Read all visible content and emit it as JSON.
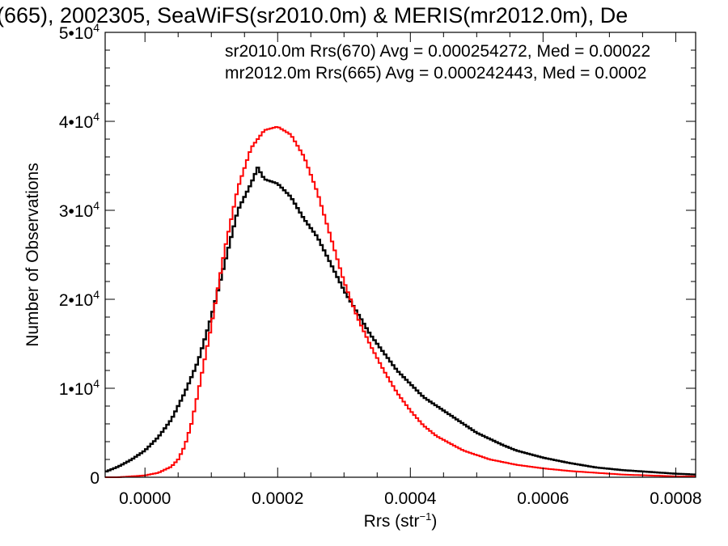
{
  "chart_data": {
    "type": "histogram",
    "title": "(665), 2002305, SeaWiFS(sr2010.0m) & MERIS(mr2012.0m), De",
    "xlabel_main": "Rrs (str",
    "xlabel_sup": "−1",
    "xlabel_end": ")",
    "ylabel": "Number of Observations",
    "xlim": [
      -6e-05,
      0.00083
    ],
    "ylim": [
      0,
      50000
    ],
    "x_ticks": [
      {
        "value": 0.0,
        "label": "0.0000"
      },
      {
        "value": 0.0002,
        "label": "0.0002"
      },
      {
        "value": 0.0004,
        "label": "0.0004"
      },
      {
        "value": 0.0006,
        "label": "0.0006"
      },
      {
        "value": 0.0008,
        "label": "0.0008"
      }
    ],
    "y_ticks": [
      {
        "value": 0,
        "mant": "0",
        "exp": ""
      },
      {
        "value": 10000,
        "mant": "1•10",
        "exp": "4"
      },
      {
        "value": 20000,
        "mant": "2•10",
        "exp": "4"
      },
      {
        "value": 30000,
        "mant": "3•10",
        "exp": "4"
      },
      {
        "value": 40000,
        "mant": "4•10",
        "exp": "4"
      },
      {
        "value": 50000,
        "mant": "5•10",
        "exp": "4"
      }
    ],
    "series": [
      {
        "name": "sr2010.0m Rrs(670)",
        "legend": "sr2010.0m Rrs(670) Avg = 0.000254272, Med = 0.00022",
        "color": "#000000",
        "x": [
          -6e-05,
          -4e-05,
          -2e-05,
          0.0,
          2e-05,
          4e-05,
          6e-05,
          8e-05,
          0.0001,
          0.00012,
          0.00014,
          0.00016,
          0.00017,
          0.00018,
          0.0002,
          0.00022,
          0.00024,
          0.00026,
          0.00028,
          0.0003,
          0.00032,
          0.00034,
          0.00036,
          0.00038,
          0.0004,
          0.00042,
          0.00044,
          0.00046,
          0.00048,
          0.0005,
          0.00052,
          0.00054,
          0.00056,
          0.0006,
          0.00064,
          0.00068,
          0.00072,
          0.00076,
          0.0008,
          0.00083
        ],
        "y": [
          600,
          1200,
          2000,
          3000,
          4500,
          6500,
          9500,
          13000,
          18000,
          24000,
          30000,
          33000,
          34800,
          33500,
          33000,
          31500,
          29000,
          27000,
          24000,
          21000,
          18500,
          16000,
          14000,
          12000,
          10500,
          9000,
          8000,
          7000,
          6000,
          5000,
          4300,
          3600,
          3000,
          2200,
          1600,
          1100,
          800,
          600,
          400,
          300
        ]
      },
      {
        "name": "mr2012.0m Rrs(665)",
        "legend": "mr2012.0m Rrs(665) Avg = 0.000242443, Med = 0.0002",
        "color": "#ff0000",
        "x": [
          -6e-05,
          -4e-05,
          -2e-05,
          0.0,
          2e-05,
          4e-05,
          5e-05,
          6e-05,
          7e-05,
          8e-05,
          0.0001,
          0.00012,
          0.00014,
          0.00016,
          0.00018,
          0.0002,
          0.00022,
          0.00024,
          0.00026,
          0.00028,
          0.0003,
          0.00032,
          0.00034,
          0.00036,
          0.00038,
          0.0004,
          0.00042,
          0.00044,
          0.00046,
          0.00048,
          0.0005,
          0.00052,
          0.00054,
          0.00056,
          0.0006,
          0.00064,
          0.00068,
          0.00072,
          0.00076,
          0.0008,
          0.00083
        ],
        "y": [
          0,
          0,
          100,
          200,
          500,
          1200,
          2000,
          3500,
          6000,
          9500,
          17000,
          25500,
          32500,
          37000,
          39000,
          39400,
          38500,
          36000,
          32000,
          27000,
          22000,
          18000,
          14800,
          12000,
          9500,
          7500,
          5800,
          4600,
          3800,
          3000,
          2500,
          2000,
          1700,
          1400,
          1000,
          700,
          500,
          300,
          200,
          100,
          80
        ]
      }
    ],
    "grid": false,
    "legend_position": "top-right"
  }
}
